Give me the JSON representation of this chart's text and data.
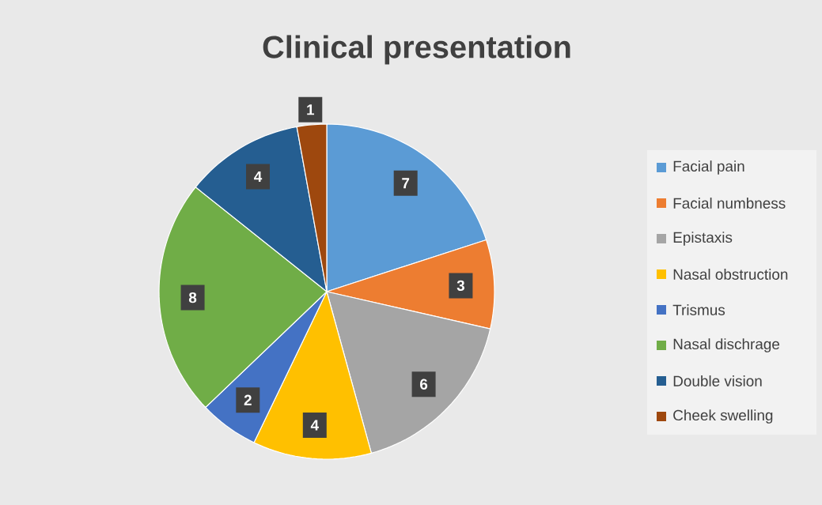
{
  "chart_data": {
    "type": "pie",
    "title": "Clinical presentation",
    "categories": [
      "Facial pain",
      "Facial numbness",
      "Epistaxis",
      "Nasal obstruction",
      "Trismus",
      "Nasal dischrage",
      "Double vision",
      "Cheek swelling"
    ],
    "values": [
      7,
      3,
      6,
      4,
      2,
      8,
      4,
      1
    ],
    "colors": [
      "#5b9bd5",
      "#ed7d31",
      "#a5a5a5",
      "#ffc000",
      "#4472c4",
      "#70ad47",
      "#255e91",
      "#9e480e"
    ],
    "data_labels": true,
    "legend": "right"
  }
}
